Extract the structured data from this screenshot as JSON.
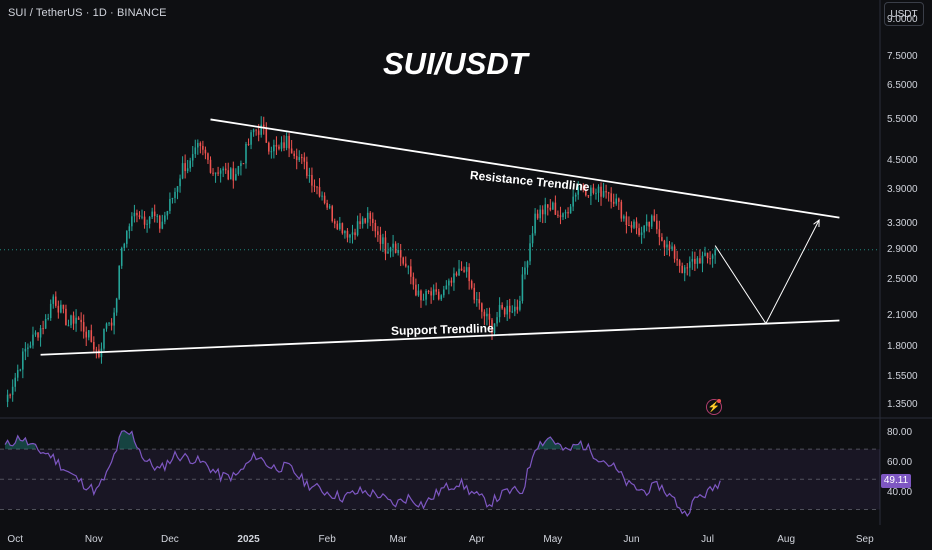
{
  "header": {
    "symbol_info": "SUI / TetherUS · 1D · BINANCE",
    "currency_button": "USDT"
  },
  "title": "SUI/USDT",
  "annotations": {
    "resistance": "Resistance Trendline",
    "support": "Support Trendline"
  },
  "price_axis": {
    "scale": "log",
    "ticks": [
      "9.0000",
      "7.5000",
      "6.5000",
      "5.5000",
      "4.5000",
      "3.9000",
      "3.3000",
      "2.9000",
      "2.5000",
      "2.1000",
      "1.8000",
      "1.5500",
      "1.3500"
    ]
  },
  "rsi_axis": {
    "ticks": [
      "80.00",
      "60.00",
      "40.00"
    ],
    "current_value": "49.11"
  },
  "time_axis": {
    "ticks": [
      "Oct",
      "Nov",
      "Dec",
      "2025",
      "Feb",
      "Mar",
      "Apr",
      "May",
      "Jun",
      "Jul",
      "Aug",
      "Sep"
    ]
  },
  "icons": {
    "alert": "lightning-alert-icon"
  },
  "colors": {
    "up": "#26a69a",
    "down": "#ef5350",
    "rsi_line": "#7e57c2",
    "rsi_band": "#7e57c2",
    "trendline": "#ffffff",
    "background": "#0e0f12"
  },
  "chart_data": {
    "type": "candlestick",
    "title": "SUI/USDT",
    "y_scale": "log",
    "ylim": [
      1.28,
      10.0
    ],
    "xlim": [
      "2024-09-25",
      "2025-09-07"
    ],
    "grid": false,
    "price_series": [
      {
        "date": "2024-09-27",
        "close": 1.38
      },
      {
        "date": "2024-10-01",
        "close": 1.56
      },
      {
        "date": "2024-10-05",
        "close": 1.78
      },
      {
        "date": "2024-10-09",
        "close": 1.92
      },
      {
        "date": "2024-10-13",
        "close": 2.05
      },
      {
        "date": "2024-10-16",
        "close": 2.32
      },
      {
        "date": "2024-10-19",
        "close": 2.16
      },
      {
        "date": "2024-10-22",
        "close": 2.02
      },
      {
        "date": "2024-10-25",
        "close": 2.1
      },
      {
        "date": "2024-10-28",
        "close": 1.98
      },
      {
        "date": "2024-10-31",
        "close": 1.86
      },
      {
        "date": "2024-11-03",
        "close": 1.74
      },
      {
        "date": "2024-11-06",
        "close": 2.05
      },
      {
        "date": "2024-11-09",
        "close": 2.08
      },
      {
        "date": "2024-11-12",
        "close": 2.95
      },
      {
        "date": "2024-11-15",
        "close": 3.3
      },
      {
        "date": "2024-11-18",
        "close": 3.55
      },
      {
        "date": "2024-11-21",
        "close": 3.4
      },
      {
        "date": "2024-11-24",
        "close": 3.48
      },
      {
        "date": "2024-11-27",
        "close": 3.28
      },
      {
        "date": "2024-11-30",
        "close": 3.55
      },
      {
        "date": "2024-12-03",
        "close": 3.9
      },
      {
        "date": "2024-12-06",
        "close": 4.4
      },
      {
        "date": "2024-12-09",
        "close": 4.45
      },
      {
        "date": "2024-12-12",
        "close": 4.8
      },
      {
        "date": "2024-12-15",
        "close": 4.65
      },
      {
        "date": "2024-12-18",
        "close": 4.3
      },
      {
        "date": "2024-12-21",
        "close": 4.35
      },
      {
        "date": "2024-12-24",
        "close": 4.2
      },
      {
        "date": "2024-12-27",
        "close": 4.28
      },
      {
        "date": "2024-12-30",
        "close": 4.6
      },
      {
        "date": "2025-01-03",
        "close": 5.25
      },
      {
        "date": "2025-01-06",
        "close": 5.3
      },
      {
        "date": "2025-01-09",
        "close": 4.9
      },
      {
        "date": "2025-01-13",
        "close": 4.75
      },
      {
        "date": "2025-01-16",
        "close": 5.0
      },
      {
        "date": "2025-01-20",
        "close": 4.7
      },
      {
        "date": "2025-01-23",
        "close": 4.4
      },
      {
        "date": "2025-01-27",
        "close": 4.05
      },
      {
        "date": "2025-01-30",
        "close": 3.85
      },
      {
        "date": "2025-02-03",
        "close": 3.45
      },
      {
        "date": "2025-02-06",
        "close": 3.3
      },
      {
        "date": "2025-02-10",
        "close": 3.15
      },
      {
        "date": "2025-02-13",
        "close": 3.3
      },
      {
        "date": "2025-02-17",
        "close": 3.4
      },
      {
        "date": "2025-02-20",
        "close": 3.25
      },
      {
        "date": "2025-02-24",
        "close": 2.95
      },
      {
        "date": "2025-02-27",
        "close": 3.05
      },
      {
        "date": "2025-03-03",
        "close": 2.75
      },
      {
        "date": "2025-03-06",
        "close": 2.55
      },
      {
        "date": "2025-03-10",
        "close": 2.25
      },
      {
        "date": "2025-03-13",
        "close": 2.35
      },
      {
        "date": "2025-03-17",
        "close": 2.3
      },
      {
        "date": "2025-03-20",
        "close": 2.4
      },
      {
        "date": "2025-03-24",
        "close": 2.55
      },
      {
        "date": "2025-03-27",
        "close": 2.7
      },
      {
        "date": "2025-03-31",
        "close": 2.3
      },
      {
        "date": "2025-04-03",
        "close": 2.15
      },
      {
        "date": "2025-04-07",
        "close": 2.0
      },
      {
        "date": "2025-04-10",
        "close": 2.15
      },
      {
        "date": "2025-04-14",
        "close": 2.2
      },
      {
        "date": "2025-04-17",
        "close": 2.2
      },
      {
        "date": "2025-04-21",
        "close": 2.85
      },
      {
        "date": "2025-04-24",
        "close": 3.45
      },
      {
        "date": "2025-04-28",
        "close": 3.55
      },
      {
        "date": "2025-05-01",
        "close": 3.6
      },
      {
        "date": "2025-05-05",
        "close": 3.4
      },
      {
        "date": "2025-05-08",
        "close": 3.7
      },
      {
        "date": "2025-05-11",
        "close": 4.0
      },
      {
        "date": "2025-05-14",
        "close": 3.95
      },
      {
        "date": "2025-05-18",
        "close": 3.85
      },
      {
        "date": "2025-05-22",
        "close": 3.95
      },
      {
        "date": "2025-05-26",
        "close": 3.7
      },
      {
        "date": "2025-05-30",
        "close": 3.35
      },
      {
        "date": "2025-06-02",
        "close": 3.3
      },
      {
        "date": "2025-06-05",
        "close": 3.15
      },
      {
        "date": "2025-06-09",
        "close": 3.35
      },
      {
        "date": "2025-06-12",
        "close": 3.2
      },
      {
        "date": "2025-06-15",
        "close": 2.95
      },
      {
        "date": "2025-06-19",
        "close": 2.8
      },
      {
        "date": "2025-06-22",
        "close": 2.6
      },
      {
        "date": "2025-06-25",
        "close": 2.75
      },
      {
        "date": "2025-06-28",
        "close": 2.8
      },
      {
        "date": "2025-07-01",
        "close": 2.78
      },
      {
        "date": "2025-07-04",
        "close": 2.92
      }
    ],
    "trendlines": [
      {
        "name": "Resistance Trendline",
        "start": {
          "date": "2024-12-17",
          "price": 5.55
        },
        "end": {
          "date": "2025-08-22",
          "price": 3.42
        }
      },
      {
        "name": "Support Trendline",
        "start": {
          "date": "2024-10-11",
          "price": 1.74
        },
        "end": {
          "date": "2025-08-22",
          "price": 2.06
        }
      }
    ],
    "projection": [
      {
        "date": "2025-07-04",
        "price": 2.98
      },
      {
        "date": "2025-07-24",
        "price": 2.03
      },
      {
        "date": "2025-08-14",
        "price": 3.38
      }
    ],
    "rsi": {
      "ylim": [
        23,
        88
      ],
      "band": [
        30,
        70
      ],
      "midline": 50,
      "current": 49.11,
      "values": [
        {
          "date": "2024-09-27",
          "v": 72
        },
        {
          "date": "2024-10-03",
          "v": 78
        },
        {
          "date": "2024-10-09",
          "v": 70
        },
        {
          "date": "2024-10-15",
          "v": 66
        },
        {
          "date": "2024-10-21",
          "v": 56
        },
        {
          "date": "2024-10-27",
          "v": 48
        },
        {
          "date": "2024-11-02",
          "v": 42
        },
        {
          "date": "2024-11-07",
          "v": 56
        },
        {
          "date": "2024-11-12",
          "v": 80
        },
        {
          "date": "2024-11-16",
          "v": 80
        },
        {
          "date": "2024-11-21",
          "v": 63
        },
        {
          "date": "2024-11-27",
          "v": 56
        },
        {
          "date": "2024-12-03",
          "v": 66
        },
        {
          "date": "2024-12-09",
          "v": 64
        },
        {
          "date": "2024-12-15",
          "v": 60
        },
        {
          "date": "2024-12-21",
          "v": 52
        },
        {
          "date": "2024-12-27",
          "v": 52
        },
        {
          "date": "2025-01-04",
          "v": 66
        },
        {
          "date": "2025-01-10",
          "v": 58
        },
        {
          "date": "2025-01-17",
          "v": 58
        },
        {
          "date": "2025-01-24",
          "v": 47
        },
        {
          "date": "2025-01-31",
          "v": 42
        },
        {
          "date": "2025-02-07",
          "v": 38
        },
        {
          "date": "2025-02-14",
          "v": 42
        },
        {
          "date": "2025-02-21",
          "v": 40
        },
        {
          "date": "2025-02-27",
          "v": 33
        },
        {
          "date": "2025-03-05",
          "v": 38
        },
        {
          "date": "2025-03-11",
          "v": 33
        },
        {
          "date": "2025-03-18",
          "v": 43
        },
        {
          "date": "2025-03-25",
          "v": 48
        },
        {
          "date": "2025-03-31",
          "v": 40
        },
        {
          "date": "2025-04-06",
          "v": 34
        },
        {
          "date": "2025-04-13",
          "v": 42
        },
        {
          "date": "2025-04-19",
          "v": 42
        },
        {
          "date": "2025-04-24",
          "v": 72
        },
        {
          "date": "2025-04-30",
          "v": 78
        },
        {
          "date": "2025-05-06",
          "v": 68
        },
        {
          "date": "2025-05-12",
          "v": 74
        },
        {
          "date": "2025-05-18",
          "v": 66
        },
        {
          "date": "2025-05-25",
          "v": 58
        },
        {
          "date": "2025-05-31",
          "v": 46
        },
        {
          "date": "2025-06-06",
          "v": 42
        },
        {
          "date": "2025-06-12",
          "v": 46
        },
        {
          "date": "2025-06-18",
          "v": 36
        },
        {
          "date": "2025-06-22",
          "v": 27
        },
        {
          "date": "2025-06-27",
          "v": 38
        },
        {
          "date": "2025-07-02",
          "v": 42
        },
        {
          "date": "2025-07-06",
          "v": 49.11
        }
      ]
    }
  }
}
